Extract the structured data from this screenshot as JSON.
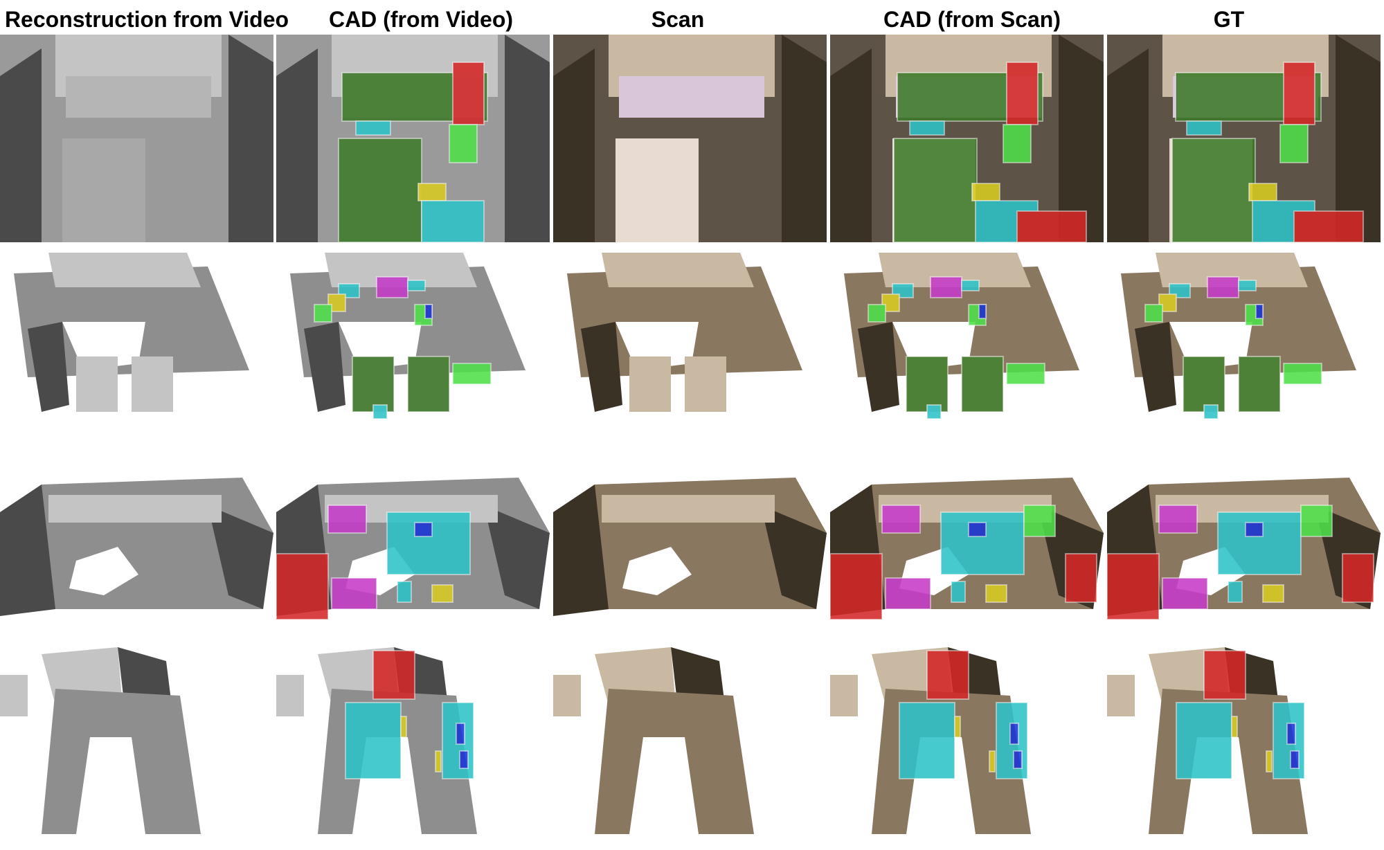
{
  "columns": [
    {
      "id": "recon",
      "label": "Reconstruction from Video"
    },
    {
      "id": "cad_video",
      "label": "CAD (from Video)"
    },
    {
      "id": "scan",
      "label": "Scan"
    },
    {
      "id": "cad_scan",
      "label": "CAD (from Scan)"
    },
    {
      "id": "gt",
      "label": "GT"
    }
  ],
  "rows": [
    {
      "id": "scene-1",
      "content": "bedroom bunk-bed scene"
    },
    {
      "id": "scene-2",
      "content": "two-bed room scene"
    },
    {
      "id": "scene-3",
      "content": "living room with sofas scene"
    },
    {
      "id": "scene-4",
      "content": "room with tables and shelf scene"
    }
  ],
  "colors": {
    "bed": "#3e7a2a",
    "cabinet": "#d42828",
    "table": "#2ec3c8",
    "chair": "#d8cc22",
    "sofa": "#c53bc8",
    "bin": "#4fe04a",
    "monitor": "#1b34d6",
    "mesh_gray": "#8e8e8e",
    "scan_brown": "#8a7760"
  }
}
